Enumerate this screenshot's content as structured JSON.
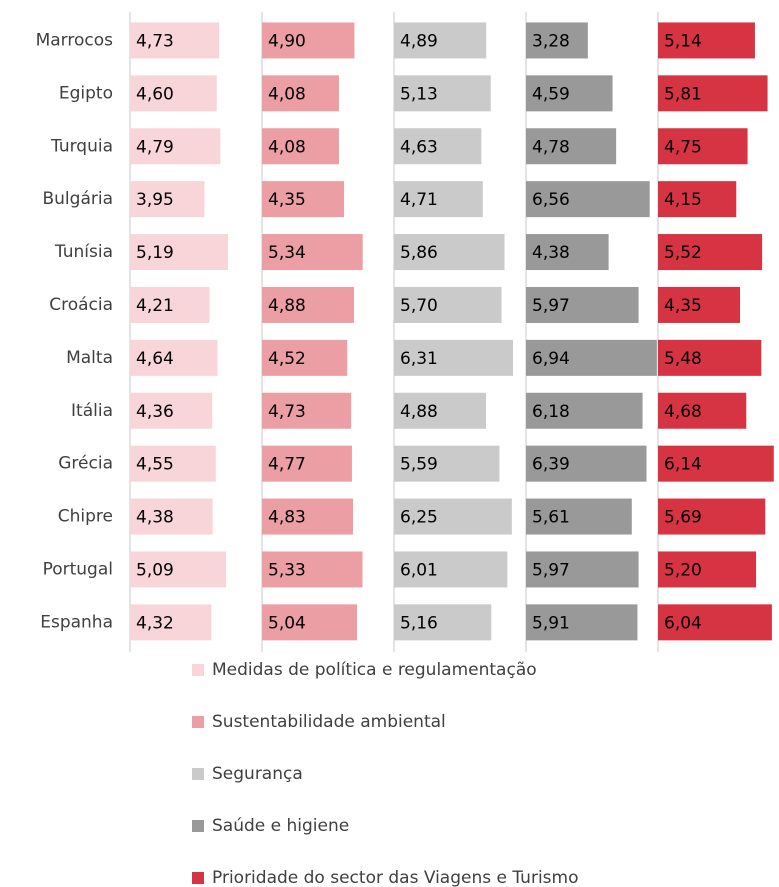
{
  "chart_data": {
    "type": "bar",
    "orientation": "horizontal",
    "layout": "panels",
    "categories": [
      "Marrocos",
      "Egipto",
      "Turquia",
      "Bulgária",
      "Tunísia",
      "Croácia",
      "Malta",
      "Itália",
      "Grécia",
      "Chipre",
      "Portugal",
      "Espanha"
    ],
    "xlim": [
      0,
      7
    ],
    "series": [
      {
        "name": "Medidas de política e regulamentação",
        "color": "#f8d5d8",
        "values": [
          4.73,
          4.6,
          4.79,
          3.95,
          5.19,
          4.21,
          4.64,
          4.36,
          4.55,
          4.38,
          5.09,
          4.32
        ],
        "value_labels": [
          "4,73",
          "4,60",
          "4,79",
          "3,95",
          "5,19",
          "4,21",
          "4,64",
          "4,36",
          "4,55",
          "4,38",
          "5,09",
          "4,32"
        ]
      },
      {
        "name": "Sustentabilidade ambiental",
        "color": "#eb9ea3",
        "values": [
          4.9,
          4.08,
          4.08,
          4.35,
          5.34,
          4.88,
          4.52,
          4.73,
          4.77,
          4.83,
          5.33,
          5.04
        ],
        "value_labels": [
          "4,90",
          "4,08",
          "4,08",
          "4,35",
          "5,34",
          "4,88",
          "4,52",
          "4,73",
          "4,77",
          "4,83",
          "5,33",
          "5,04"
        ]
      },
      {
        "name": "Segurança",
        "color": "#cacaca",
        "values": [
          4.89,
          5.13,
          4.63,
          4.71,
          5.86,
          5.7,
          6.31,
          4.88,
          5.59,
          6.25,
          6.01,
          5.16
        ],
        "value_labels": [
          "4,89",
          "5,13",
          "4,63",
          "4,71",
          "5,86",
          "5,70",
          "6,31",
          "4,88",
          "5,59",
          "6,25",
          "6,01",
          "5,16"
        ]
      },
      {
        "name": "Saúde e higiene",
        "color": "#999999",
        "values": [
          3.28,
          4.59,
          4.78,
          6.56,
          4.38,
          5.97,
          6.94,
          6.18,
          6.39,
          5.61,
          5.97,
          5.91
        ],
        "value_labels": [
          "3,28",
          "4,59",
          "4,78",
          "6,56",
          "4,38",
          "5,97",
          "6,94",
          "6,18",
          "6,39",
          "5,61",
          "5,97",
          "5,91"
        ]
      },
      {
        "name": "Prioridade do sector das Viagens e Turismo",
        "color": "#d63343",
        "values": [
          5.14,
          5.81,
          4.75,
          4.15,
          5.52,
          4.35,
          5.48,
          4.68,
          6.14,
          5.69,
          5.2,
          6.04
        ],
        "value_labels": [
          "5,14",
          "5,81",
          "4,75",
          "4,15",
          "5,52",
          "4,35",
          "5,48",
          "4,68",
          "6,14",
          "5,69",
          "5,20",
          "6,04"
        ]
      }
    ],
    "legend": "bottom"
  }
}
